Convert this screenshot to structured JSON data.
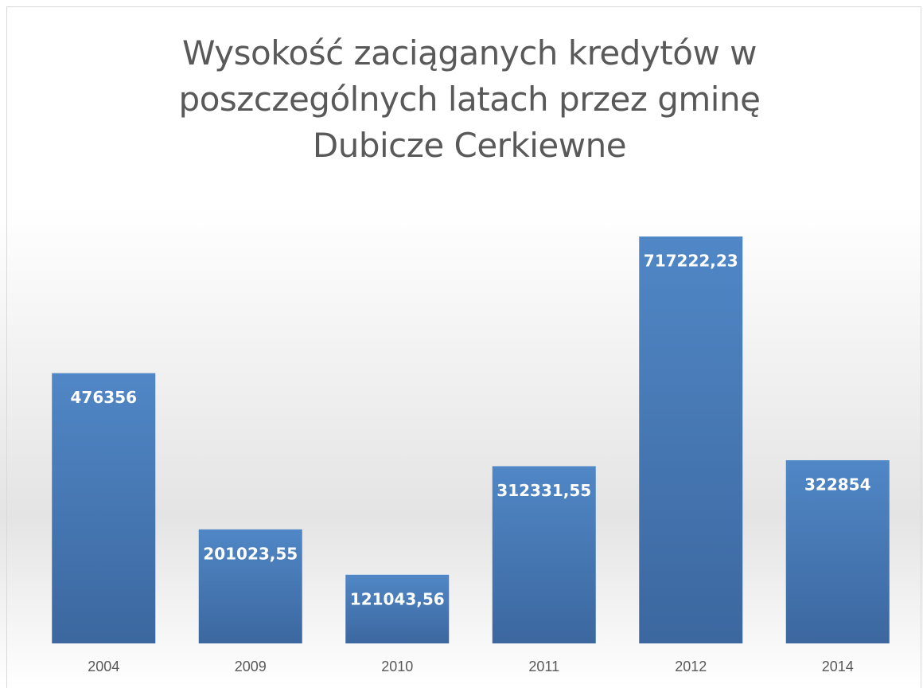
{
  "chart_data": {
    "type": "bar",
    "title": "Wysokość zaciąganych kredytów w poszczególnych latach przez gminę Dubicze Cerkiewne",
    "categories": [
      "2004",
      "2009",
      "2010",
      "2011",
      "2012",
      "2014"
    ],
    "values": [
      476356,
      201023.55,
      121043.56,
      312331.55,
      717222.23,
      322854
    ],
    "value_labels": [
      "476356",
      "201023,55",
      "121043,56",
      "312331,55",
      "717222,23",
      "322854"
    ],
    "color": "#4a7bb7"
  }
}
